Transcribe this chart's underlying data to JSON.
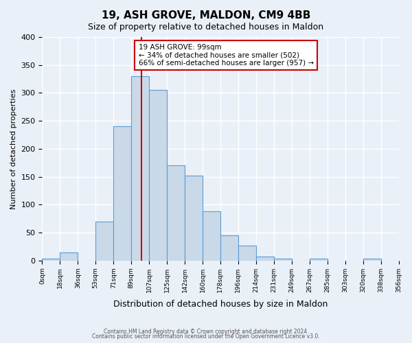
{
  "title": "19, ASH GROVE, MALDON, CM9 4BB",
  "subtitle": "Size of property relative to detached houses in Maldon",
  "xlabel": "Distribution of detached houses by size in Maldon",
  "ylabel": "Number of detached properties",
  "bin_labels": [
    "0sqm",
    "18sqm",
    "36sqm",
    "53sqm",
    "71sqm",
    "89sqm",
    "107sqm",
    "125sqm",
    "142sqm",
    "160sqm",
    "178sqm",
    "196sqm",
    "214sqm",
    "231sqm",
    "249sqm",
    "267sqm",
    "285sqm",
    "303sqm",
    "320sqm",
    "338sqm",
    "356sqm"
  ],
  "bar_heights": [
    3,
    15,
    0,
    70,
    240,
    330,
    305,
    170,
    152,
    88,
    45,
    27,
    7,
    3,
    0,
    3,
    0,
    0,
    3,
    0
  ],
  "bar_color": "#c9d9e8",
  "bar_edge_color": "#5b9bd5",
  "vline_x": 99,
  "vline_color": "#cc0000",
  "ylim": [
    0,
    400
  ],
  "yticks": [
    0,
    50,
    100,
    150,
    200,
    250,
    300,
    350,
    400
  ],
  "annotation_title": "19 ASH GROVE: 99sqm",
  "annotation_line1": "← 34% of detached houses are smaller (502)",
  "annotation_line2": "66% of semi-detached houses are larger (957) →",
  "annotation_box_color": "#ffffff",
  "annotation_box_edge": "#cc0000",
  "footer1": "Contains HM Land Registry data © Crown copyright and database right 2024.",
  "footer2": "Contains public sector information licensed under the Open Government Licence v3.0.",
  "background_color": "#eaf0f8",
  "plot_bg_color": "#eaf0f8",
  "grid_color": "#ffffff"
}
